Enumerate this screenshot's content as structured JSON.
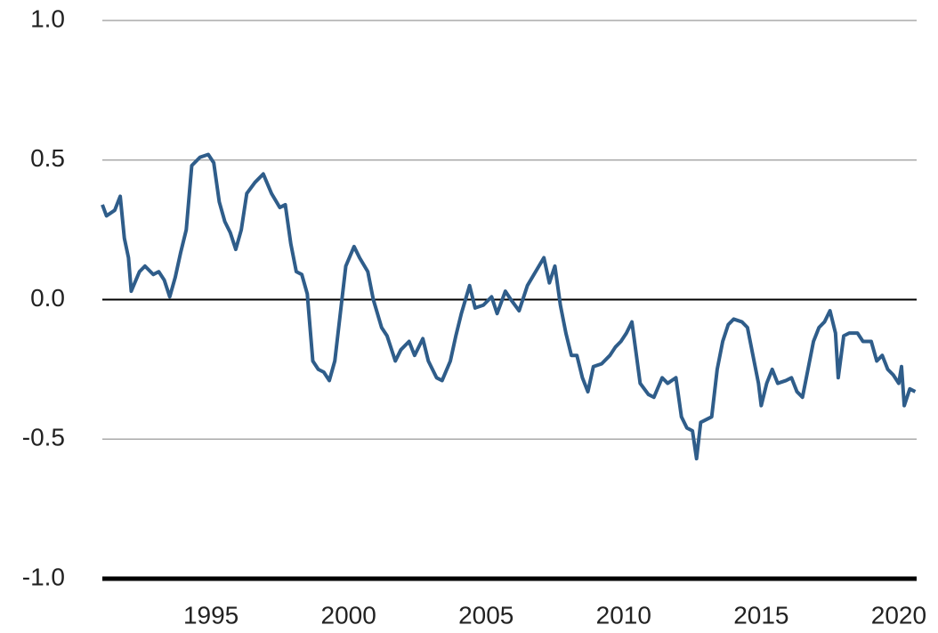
{
  "chart_data": {
    "type": "line",
    "x": [
      1991.05,
      1991.2,
      1991.5,
      1991.7,
      1991.85,
      1992.0,
      1992.1,
      1992.4,
      1992.6,
      1992.9,
      1993.1,
      1993.3,
      1993.5,
      1993.7,
      1993.9,
      1994.1,
      1994.3,
      1994.6,
      1994.9,
      1995.1,
      1995.3,
      1995.5,
      1995.7,
      1995.9,
      1996.1,
      1996.3,
      1996.6,
      1996.9,
      1997.2,
      1997.5,
      1997.7,
      1997.9,
      1998.1,
      1998.3,
      1998.5,
      1998.7,
      1998.9,
      1999.1,
      1999.3,
      1999.5,
      1999.7,
      1999.9,
      2000.2,
      2000.4,
      2000.7,
      2000.9,
      2001.2,
      2001.4,
      2001.7,
      2001.9,
      2002.2,
      2002.4,
      2002.7,
      2002.9,
      2003.2,
      2003.4,
      2003.7,
      2003.9,
      2004.1,
      2004.4,
      2004.6,
      2004.9,
      2005.2,
      2005.4,
      2005.7,
      2005.9,
      2006.2,
      2006.5,
      2006.8,
      2007.1,
      2007.3,
      2007.5,
      2007.7,
      2007.9,
      2008.1,
      2008.3,
      2008.5,
      2008.7,
      2008.9,
      2009.2,
      2009.5,
      2009.7,
      2009.9,
      2010.1,
      2010.3,
      2010.6,
      2010.9,
      2011.1,
      2011.4,
      2011.6,
      2011.9,
      2012.1,
      2012.3,
      2012.5,
      2012.65,
      2012.8,
      2013.0,
      2013.2,
      2013.4,
      2013.6,
      2013.8,
      2014.0,
      2014.3,
      2014.5,
      2014.7,
      2014.9,
      2015.0,
      2015.2,
      2015.4,
      2015.6,
      2015.9,
      2016.1,
      2016.3,
      2016.5,
      2016.7,
      2016.9,
      2017.1,
      2017.3,
      2017.5,
      2017.7,
      2017.8,
      2018.0,
      2018.2,
      2018.5,
      2018.7,
      2019.0,
      2019.2,
      2019.4,
      2019.6,
      2019.8,
      2020.0,
      2020.1,
      2020.2,
      2020.4,
      2020.6
    ],
    "series": [
      {
        "color": "#2f5d8a",
        "values": [
          0.34,
          0.3,
          0.32,
          0.37,
          0.22,
          0.15,
          0.03,
          0.1,
          0.12,
          0.09,
          0.1,
          0.07,
          0.01,
          0.08,
          0.17,
          0.25,
          0.48,
          0.51,
          0.52,
          0.49,
          0.35,
          0.28,
          0.24,
          0.18,
          0.25,
          0.38,
          0.42,
          0.45,
          0.38,
          0.33,
          0.34,
          0.2,
          0.1,
          0.09,
          0.02,
          -0.22,
          -0.25,
          -0.26,
          -0.29,
          -0.22,
          -0.05,
          0.12,
          0.19,
          0.15,
          0.1,
          0.0,
          -0.1,
          -0.13,
          -0.22,
          -0.18,
          -0.15,
          -0.2,
          -0.14,
          -0.22,
          -0.28,
          -0.29,
          -0.22,
          -0.13,
          -0.05,
          0.05,
          -0.03,
          -0.02,
          0.01,
          -0.05,
          0.03,
          0.0,
          -0.04,
          0.05,
          0.1,
          0.15,
          0.06,
          0.12,
          -0.02,
          -0.12,
          -0.2,
          -0.2,
          -0.28,
          -0.33,
          -0.24,
          -0.23,
          -0.2,
          -0.17,
          -0.15,
          -0.12,
          -0.08,
          -0.3,
          -0.34,
          -0.35,
          -0.28,
          -0.3,
          -0.28,
          -0.42,
          -0.46,
          -0.47,
          -0.57,
          -0.44,
          -0.43,
          -0.42,
          -0.25,
          -0.15,
          -0.09,
          -0.07,
          -0.08,
          -0.1,
          -0.2,
          -0.3,
          -0.38,
          -0.3,
          -0.25,
          -0.3,
          -0.29,
          -0.28,
          -0.33,
          -0.35,
          -0.25,
          -0.15,
          -0.1,
          -0.08,
          -0.04,
          -0.12,
          -0.28,
          -0.13,
          -0.12,
          -0.12,
          -0.15,
          -0.15,
          -0.22,
          -0.2,
          -0.25,
          -0.27,
          -0.3,
          -0.24,
          -0.38,
          -0.32,
          -0.33
        ]
      }
    ],
    "xlim": [
      1991.05,
      2020.65
    ],
    "xticks": [
      1995,
      2000,
      2005,
      2010,
      2015,
      2020
    ],
    "ylim": [
      -1,
      1
    ],
    "yticks": [
      {
        "value": -1,
        "label": "-1.0"
      },
      -0.5,
      {
        "value": 0,
        "label": "0.0"
      },
      0.5,
      {
        "value": 1,
        "label": "1.0"
      }
    ],
    "grid": true
  }
}
